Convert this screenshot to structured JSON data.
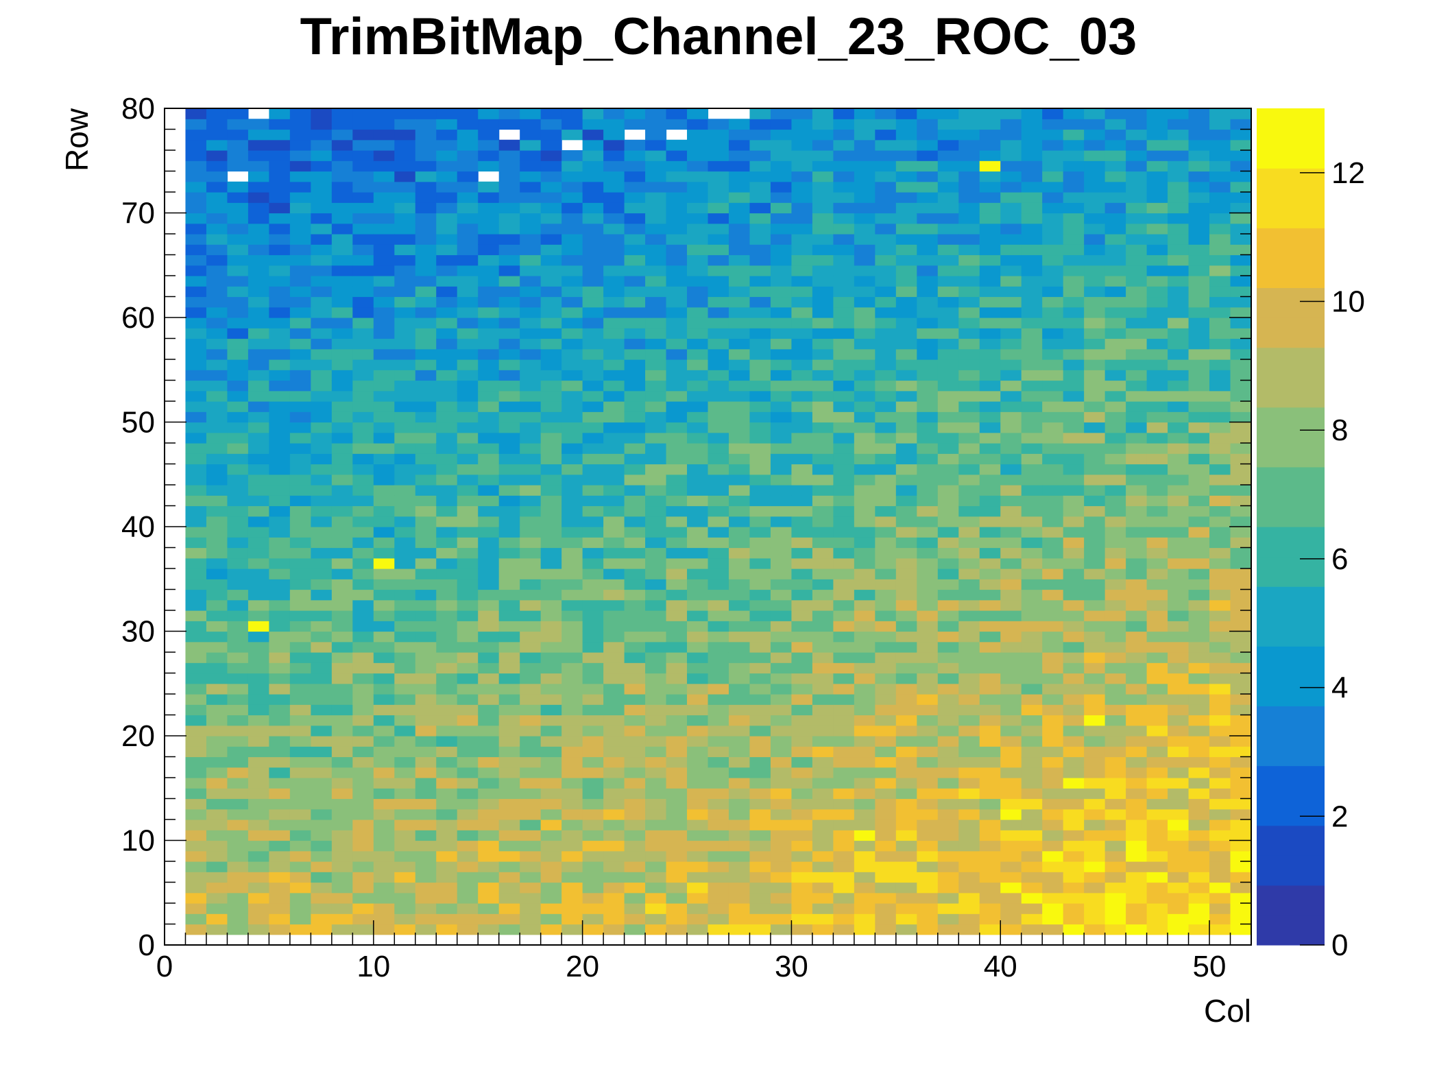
{
  "chart_data": {
    "type": "heatmap",
    "title": "TrimBitMap_Channel_23_ROC_03",
    "xlabel": "Col",
    "ylabel": "Row",
    "xlim": [
      0,
      52
    ],
    "ylim": [
      0,
      80
    ],
    "zlim": [
      0,
      13
    ],
    "x_ticks": [
      "0",
      "10",
      "20",
      "30",
      "40",
      "50"
    ],
    "y_ticks": [
      "0",
      "10",
      "20",
      "30",
      "40",
      "50",
      "60",
      "70",
      "80"
    ],
    "colorbar_ticks": [
      "0",
      "2",
      "4",
      "6",
      "8",
      "10",
      "12"
    ],
    "palette": [
      "#2f3aa8",
      "#1b4ac2",
      "#0e63d8",
      "#1680d6",
      "#0a98cf",
      "#1aa6c2",
      "#35b3a2",
      "#5cba8a",
      "#8ac07a",
      "#b3bb68",
      "#d6b552",
      "#f2c032",
      "#f8dc20",
      "#f9f90e"
    ],
    "grid": false,
    "legend": "none",
    "row_profile_description": "values increase from ~3 at top rows to ~10 at bottom rows, and increase towards higher columns",
    "empty_cells": [
      [
        4,
        79
      ],
      [
        26,
        79
      ],
      [
        27,
        79
      ],
      [
        16,
        77
      ],
      [
        22,
        77
      ],
      [
        24,
        77
      ],
      [
        19,
        76
      ],
      [
        3,
        73
      ],
      [
        15,
        73
      ]
    ],
    "highlight_cells": [
      [
        10,
        36
      ],
      [
        4,
        30
      ],
      [
        39,
        74
      ],
      [
        44,
        21
      ],
      [
        43,
        15
      ],
      [
        33,
        10
      ],
      [
        40,
        12
      ],
      [
        45,
        4
      ],
      [
        48,
        1
      ],
      [
        51,
        7
      ]
    ]
  }
}
